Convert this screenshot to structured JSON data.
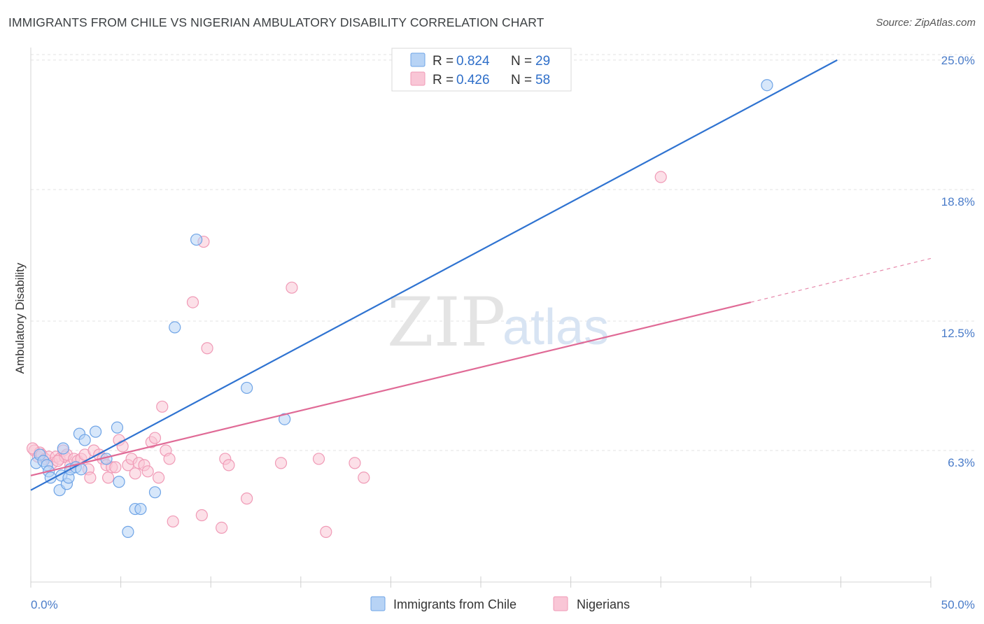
{
  "title": "IMMIGRANTS FROM CHILE VS NIGERIAN AMBULATORY DISABILITY CORRELATION CHART",
  "source": "Source: ZipAtlas.com",
  "watermark": {
    "zip": "ZIP",
    "atlas": "atlas"
  },
  "chart_data": {
    "type": "scatter",
    "ylabel": "Ambulatory Disability",
    "xlim": [
      0,
      50
    ],
    "ylim": [
      0,
      25.6
    ],
    "x_tick_labels": [
      {
        "value": 0,
        "label": "0.0%"
      },
      {
        "value": 50,
        "label": "50.0%"
      }
    ],
    "y_ticks": [
      {
        "value": 6.3,
        "label": "6.3%"
      },
      {
        "value": 12.5,
        "label": "12.5%"
      },
      {
        "value": 18.8,
        "label": "18.8%"
      },
      {
        "value": 25.0,
        "label": "25.0%"
      }
    ],
    "legend": {
      "rows": [
        {
          "r_label": "R =",
          "r_value": "0.824",
          "n_label": "N =",
          "n_value": "29"
        },
        {
          "r_label": "R =",
          "r_value": "0.426",
          "n_label": "N =",
          "n_value": "58"
        }
      ]
    },
    "series": [
      {
        "name": "Immigrants from Chile",
        "color": "#6fa4e6",
        "fill": "#b7d3f5",
        "line_color": "#2f73d1",
        "trend": {
          "x0": 0,
          "y0": 4.4,
          "x1": 44.8,
          "y1": 25.0,
          "dash_to": null
        },
        "points": [
          [
            0.3,
            5.7
          ],
          [
            0.5,
            6.1
          ],
          [
            0.7,
            5.8
          ],
          [
            0.9,
            5.6
          ],
          [
            1.0,
            5.3
          ],
          [
            1.1,
            5.0
          ],
          [
            1.6,
            4.4
          ],
          [
            1.7,
            5.1
          ],
          [
            1.8,
            6.4
          ],
          [
            2.0,
            4.7
          ],
          [
            2.1,
            5.0
          ],
          [
            2.2,
            5.4
          ],
          [
            2.5,
            5.5
          ],
          [
            2.7,
            7.1
          ],
          [
            2.8,
            5.4
          ],
          [
            3.0,
            6.8
          ],
          [
            3.6,
            7.2
          ],
          [
            4.2,
            5.9
          ],
          [
            4.8,
            7.4
          ],
          [
            4.9,
            4.8
          ],
          [
            5.4,
            2.4
          ],
          [
            5.8,
            3.5
          ],
          [
            6.1,
            3.5
          ],
          [
            6.9,
            4.3
          ],
          [
            8.0,
            12.2
          ],
          [
            9.2,
            16.4
          ],
          [
            12.0,
            9.3
          ],
          [
            14.1,
            7.8
          ],
          [
            40.9,
            23.8
          ]
        ]
      },
      {
        "name": "Nigerians",
        "color": "#f09ab6",
        "fill": "#f9c6d6",
        "line_color": "#e06a96",
        "trend": {
          "x0": 0,
          "y0": 5.1,
          "x1": 40.0,
          "y1": 13.4,
          "dash_to": {
            "x": 50,
            "y": 15.5
          }
        },
        "points": [
          [
            0.2,
            6.3
          ],
          [
            0.4,
            6.0
          ],
          [
            0.5,
            6.2
          ],
          [
            0.6,
            6.1
          ],
          [
            0.8,
            5.9
          ],
          [
            1.0,
            6.0
          ],
          [
            1.2,
            5.7
          ],
          [
            1.4,
            6.0
          ],
          [
            1.6,
            5.9
          ],
          [
            1.8,
            6.3
          ],
          [
            1.9,
            6.0
          ],
          [
            2.0,
            6.1
          ],
          [
            2.2,
            5.6
          ],
          [
            2.4,
            5.9
          ],
          [
            2.6,
            5.8
          ],
          [
            2.8,
            5.9
          ],
          [
            3.0,
            6.1
          ],
          [
            3.2,
            5.4
          ],
          [
            3.3,
            5.0
          ],
          [
            3.5,
            6.3
          ],
          [
            3.8,
            6.1
          ],
          [
            4.0,
            5.9
          ],
          [
            4.2,
            5.6
          ],
          [
            4.3,
            5.0
          ],
          [
            4.5,
            5.5
          ],
          [
            4.7,
            5.5
          ],
          [
            4.9,
            6.8
          ],
          [
            5.1,
            6.5
          ],
          [
            5.4,
            5.6
          ],
          [
            5.6,
            5.9
          ],
          [
            5.8,
            5.2
          ],
          [
            6.0,
            5.7
          ],
          [
            6.3,
            5.6
          ],
          [
            6.5,
            5.3
          ],
          [
            6.7,
            6.7
          ],
          [
            6.9,
            6.9
          ],
          [
            7.1,
            5.0
          ],
          [
            7.3,
            8.4
          ],
          [
            7.5,
            6.3
          ],
          [
            7.7,
            5.9
          ],
          [
            7.9,
            2.9
          ],
          [
            9.0,
            13.4
          ],
          [
            9.5,
            3.2
          ],
          [
            9.6,
            16.3
          ],
          [
            9.8,
            11.2
          ],
          [
            10.6,
            2.6
          ],
          [
            10.8,
            5.9
          ],
          [
            11.0,
            5.6
          ],
          [
            12.0,
            4.0
          ],
          [
            13.9,
            5.7
          ],
          [
            14.5,
            14.1
          ],
          [
            16.0,
            5.9
          ],
          [
            16.4,
            2.4
          ],
          [
            18.0,
            5.7
          ],
          [
            18.5,
            5.0
          ],
          [
            35.0,
            19.4
          ],
          [
            0.1,
            6.4
          ],
          [
            1.5,
            5.8
          ]
        ]
      }
    ]
  }
}
